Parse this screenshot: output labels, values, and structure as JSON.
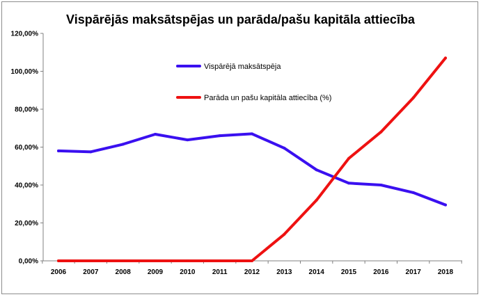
{
  "chart_data": {
    "type": "line",
    "title": "Vispārējās maksātspējas un parāda/pašu kapitāla attiecība",
    "xlabel": "",
    "ylabel": "",
    "categories": [
      "2006",
      "2007",
      "2008",
      "2009",
      "2010",
      "2011",
      "2012",
      "2013",
      "2014",
      "2015",
      "2016",
      "2017",
      "2018"
    ],
    "ylim": [
      0,
      120
    ],
    "yticks": [
      "0,00%",
      "20,00%",
      "40,00%",
      "60,00%",
      "80,00%",
      "100,00%",
      "120,00%"
    ],
    "legend_position": "top-center",
    "series": [
      {
        "name": "Vispārējā maksātspēja",
        "color": "#3a10f0",
        "values": [
          58,
          57.5,
          61.5,
          66.8,
          63.8,
          66,
          67,
          59.5,
          48,
          41,
          40,
          36,
          29.5
        ]
      },
      {
        "name": "Parāda un pašu kapitāla attiecība (%)",
        "color": "#ee1111",
        "values": [
          0,
          0,
          0,
          0,
          0,
          0,
          0,
          14,
          32,
          54,
          68,
          86,
          107
        ]
      }
    ]
  }
}
